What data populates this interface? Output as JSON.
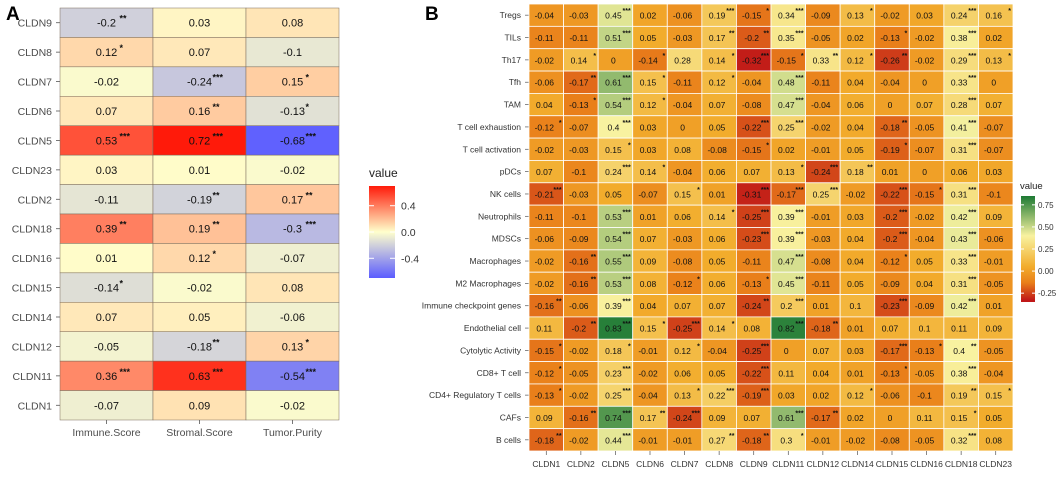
{
  "panels": {
    "a_label": "A",
    "b_label": "B"
  },
  "chart_data": [
    {
      "type": "heatmap",
      "panel": "A",
      "columns": [
        "Immune.Score",
        "Stromal.Score",
        "Tumor.Purity"
      ],
      "rows": [
        "CLDN9",
        "CLDN8",
        "CLDN7",
        "CLDN6",
        "CLDN5",
        "CLDN23",
        "CLDN2",
        "CLDN18",
        "CLDN16",
        "CLDN15",
        "CLDN14",
        "CLDN12",
        "CLDN11",
        "CLDN1"
      ],
      "values": [
        [
          -0.2,
          0.03,
          0.08
        ],
        [
          0.12,
          0.07,
          -0.1
        ],
        [
          -0.02,
          -0.24,
          0.15
        ],
        [
          0.07,
          0.16,
          -0.13
        ],
        [
          0.53,
          0.72,
          -0.68
        ],
        [
          0.03,
          0.01,
          -0.02
        ],
        [
          -0.11,
          -0.19,
          0.17
        ],
        [
          0.39,
          0.19,
          -0.3
        ],
        [
          0.01,
          0.12,
          -0.07
        ],
        [
          -0.14,
          -0.02,
          0.08
        ],
        [
          0.07,
          0.05,
          -0.06
        ],
        [
          -0.05,
          -0.18,
          0.13
        ],
        [
          0.36,
          0.63,
          -0.54
        ],
        [
          -0.07,
          0.09,
          -0.02
        ]
      ],
      "labels": [
        [
          "-0.2",
          "0.03",
          "0.08"
        ],
        [
          "0.12",
          "0.07",
          "-0.1"
        ],
        [
          "-0.02",
          "-0.24",
          "0.15"
        ],
        [
          "0.07",
          "0.16",
          "-0.13"
        ],
        [
          "0.53",
          "0.72",
          "-0.68"
        ],
        [
          "0.03",
          "0.01",
          "-0.02"
        ],
        [
          "-0.11",
          "-0.19",
          "0.17"
        ],
        [
          "0.39",
          "0.19",
          "-0.3"
        ],
        [
          "0.01",
          "0.12",
          "-0.07"
        ],
        [
          "-0.14",
          "-0.02",
          "0.08"
        ],
        [
          "0.07",
          "0.05",
          "-0.06"
        ],
        [
          "-0.05",
          "-0.18",
          "0.13"
        ],
        [
          "0.36",
          "0.63",
          "-0.54"
        ],
        [
          "-0.07",
          "0.09",
          "-0.02"
        ]
      ],
      "stars": [
        [
          "**",
          "",
          ""
        ],
        [
          "*",
          "",
          ""
        ],
        [
          "",
          "***",
          "*"
        ],
        [
          "",
          "**",
          "*"
        ],
        [
          "***",
          "***",
          "***"
        ],
        [
          "",
          "",
          ""
        ],
        [
          "",
          "**",
          "**"
        ],
        [
          "**",
          "**",
          "***"
        ],
        [
          "",
          "*",
          ""
        ],
        [
          "*",
          "",
          ""
        ],
        [
          "",
          "",
          ""
        ],
        [
          "",
          "**",
          "*"
        ],
        [
          "***",
          "***",
          "***"
        ],
        [
          "",
          "",
          ""
        ]
      ],
      "legend": {
        "title": "value",
        "ticks": [
          "0.4",
          "0.0",
          "-0.4"
        ],
        "tick_values": [
          0.4,
          0.0,
          -0.4
        ],
        "range": [
          -0.7,
          0.7
        ],
        "colors": {
          "low": "#5b5cff",
          "mid": "#ffffcc",
          "high": "#ff1a0a"
        }
      }
    },
    {
      "type": "heatmap",
      "panel": "B",
      "columns": [
        "CLDN1",
        "CLDN2",
        "CLDN5",
        "CLDN6",
        "CLDN7",
        "CLDN8",
        "CLDN9",
        "CLDN11",
        "CLDN12",
        "CLDN14",
        "CLDN15",
        "CLDN16",
        "CLDN18",
        "CLDN23"
      ],
      "rows": [
        "Tregs",
        "TILs",
        "Th17",
        "Tfh",
        "TAM",
        "T cell exhaustion",
        "T cell activation",
        "pDCs",
        "NK cells",
        "Neutrophils",
        "MDSCs",
        "Macrophages",
        "M2 Macrophages",
        "Immune checkpoint genes",
        "Endothelial cell",
        "Cytolytic Activity",
        "CD8+ T cell",
        "CD4+ Regulatory T cells",
        "CAFs",
        "B cells"
      ],
      "labels": [
        [
          "-0.04",
          "-0.03",
          "0.45",
          "0.02",
          "-0.06",
          "0.19",
          "-0.15",
          "0.34",
          "-0.09",
          "0.13",
          "-0.02",
          "0.03",
          "0.24",
          "0.16"
        ],
        [
          "-0.11",
          "-0.11",
          "0.51",
          "0.05",
          "-0.03",
          "0.17",
          "-0.2",
          "0.35",
          "-0.05",
          "0.02",
          "-0.13",
          "-0.02",
          "0.38",
          "0.02"
        ],
        [
          "-0.02",
          "0.14",
          "0",
          "-0.14",
          "0.28",
          "0.14",
          "-0.32",
          "-0.15",
          "0.33",
          "0.12",
          "-0.26",
          "-0.02",
          "0.29",
          "0.13"
        ],
        [
          "-0.06",
          "-0.17",
          "0.61",
          "0.15",
          "-0.11",
          "0.12",
          "-0.04",
          "0.48",
          "-0.11",
          "0.04",
          "-0.04",
          "0",
          "0.33",
          "0"
        ],
        [
          "0.04",
          "-0.13",
          "0.54",
          "0.12",
          "-0.04",
          "0.07",
          "-0.08",
          "0.47",
          "-0.04",
          "0.06",
          "0",
          "0.07",
          "0.28",
          "0.07"
        ],
        [
          "-0.12",
          "-0.07",
          "0.4",
          "0.03",
          "0",
          "0.05",
          "-0.22",
          "0.25",
          "-0.02",
          "0.04",
          "-0.18",
          "-0.05",
          "0.41",
          "-0.07"
        ],
        [
          "-0.02",
          "-0.03",
          "0.15",
          "0.03",
          "0.08",
          "-0.08",
          "-0.15",
          "0.02",
          "-0.01",
          "0.05",
          "-0.19",
          "-0.07",
          "0.31",
          "-0.07"
        ],
        [
          "0.07",
          "-0.1",
          "0.24",
          "0.14",
          "-0.04",
          "0.06",
          "0.07",
          "0.13",
          "-0.24",
          "0.18",
          "0.01",
          "0",
          "0.06",
          "0.03"
        ],
        [
          "-0.21",
          "-0.03",
          "0.05",
          "-0.07",
          "0.15",
          "0.01",
          "-0.31",
          "-0.17",
          "0.25",
          "-0.02",
          "-0.22",
          "-0.15",
          "0.31",
          "-0.1"
        ],
        [
          "-0.11",
          "-0.1",
          "0.53",
          "0.01",
          "0.06",
          "0.14",
          "-0.25",
          "0.39",
          "-0.01",
          "0.03",
          "-0.2",
          "-0.02",
          "0.42",
          "0.09"
        ],
        [
          "-0.06",
          "-0.09",
          "0.54",
          "0.07",
          "-0.03",
          "0.06",
          "-0.23",
          "0.39",
          "-0.03",
          "0.04",
          "-0.2",
          "-0.04",
          "0.43",
          "-0.06"
        ],
        [
          "-0.02",
          "-0.16",
          "0.55",
          "0.09",
          "-0.08",
          "0.05",
          "-0.11",
          "0.47",
          "-0.08",
          "0.04",
          "-0.12",
          "0.05",
          "0.33",
          "-0.01"
        ],
        [
          "-0.02",
          "-0.16",
          "0.53",
          "0.08",
          "-0.12",
          "0.06",
          "-0.13",
          "0.45",
          "-0.11",
          "0.05",
          "-0.09",
          "0.04",
          "0.31",
          "-0.05"
        ],
        [
          "-0.16",
          "-0.06",
          "0.39",
          "0.04",
          "0.07",
          "0.07",
          "-0.24",
          "0.2",
          "0.01",
          "0.1",
          "-0.23",
          "-0.09",
          "0.42",
          "0.01"
        ],
        [
          "0.11",
          "-0.2",
          "0.83",
          "0.15",
          "-0.25",
          "0.14",
          "0.08",
          "0.82",
          "-0.18",
          "0.01",
          "0.07",
          "0.1",
          "0.11",
          "0.09"
        ],
        [
          "-0.15",
          "-0.02",
          "0.18",
          "-0.01",
          "0.12",
          "-0.04",
          "-0.25",
          "0",
          "0.07",
          "0.03",
          "-0.17",
          "-0.13",
          "0.4",
          "-0.05"
        ],
        [
          "-0.12",
          "-0.05",
          "0.23",
          "-0.02",
          "0.06",
          "0.05",
          "-0.22",
          "0.11",
          "0.04",
          "0.01",
          "-0.13",
          "-0.05",
          "0.38",
          "-0.04"
        ],
        [
          "-0.13",
          "-0.02",
          "0.25",
          "-0.04",
          "0.13",
          "0.22",
          "-0.19",
          "0.03",
          "0.02",
          "0.12",
          "-0.06",
          "-0.1",
          "0.19",
          "0.15"
        ],
        [
          "0.09",
          "-0.16",
          "0.74",
          "0.17",
          "-0.24",
          "0.09",
          "0.07",
          "0.61",
          "-0.17",
          "0.02",
          "0",
          "0.11",
          "0.15",
          "0.05"
        ],
        [
          "-0.18",
          "-0.02",
          "0.44",
          "-0.01",
          "-0.01",
          "0.27",
          "-0.18",
          "0.3",
          "-0.01",
          "-0.02",
          "-0.08",
          "-0.05",
          "0.32",
          "0.08"
        ]
      ],
      "stars": [
        [
          "",
          "",
          "***",
          "",
          "",
          "***",
          "*",
          "***",
          "",
          "*",
          "",
          "",
          "***",
          "*"
        ],
        [
          "",
          "",
          "***",
          "",
          "",
          "**",
          "**",
          "***",
          "",
          "",
          "*",
          "",
          "***",
          ""
        ],
        [
          "",
          "*",
          "",
          "*",
          "",
          "*",
          "***",
          "*",
          "**",
          "*",
          "**",
          "",
          "***",
          "*"
        ],
        [
          "",
          "**",
          "***",
          "*",
          "",
          "*",
          "",
          "***",
          "",
          "",
          "",
          "",
          "***",
          ""
        ],
        [
          "",
          "*",
          "***",
          "*",
          "",
          "",
          "",
          "***",
          "",
          "",
          "",
          "",
          "***",
          ""
        ],
        [
          "*",
          "",
          "***",
          "",
          "",
          "",
          "***",
          "***",
          "",
          "",
          "**",
          "",
          "***",
          ""
        ],
        [
          "",
          "",
          "*",
          "",
          "",
          "",
          "*",
          "",
          "",
          "",
          "*",
          "",
          "***",
          ""
        ],
        [
          "",
          "",
          "***",
          "*",
          "",
          "",
          "",
          "*",
          "***",
          "**",
          "",
          "",
          "",
          ""
        ],
        [
          "***",
          "",
          "",
          "",
          "*",
          "",
          "***",
          "***",
          "***",
          "",
          "***",
          "*",
          "***",
          ""
        ],
        [
          "",
          "",
          "***",
          "",
          "",
          "*",
          "***",
          "***",
          "",
          "",
          "***",
          "",
          "***",
          ""
        ],
        [
          "",
          "",
          "***",
          "",
          "",
          "",
          "***",
          "***",
          "",
          "",
          "***",
          "",
          "***",
          ""
        ],
        [
          "",
          "**",
          "***",
          "",
          "",
          "",
          "",
          "***",
          "",
          "",
          "*",
          "",
          "***",
          ""
        ],
        [
          "",
          "**",
          "***",
          "",
          "*",
          "",
          "*",
          "***",
          "",
          "",
          "",
          "",
          "***",
          ""
        ],
        [
          "**",
          "",
          "***",
          "",
          "",
          "",
          "**",
          "***",
          "",
          "",
          "***",
          "",
          "***",
          ""
        ],
        [
          "",
          "**",
          "***",
          "*",
          "***",
          "*",
          "",
          "***",
          "**",
          "",
          "",
          "",
          "",
          ""
        ],
        [
          "*",
          "",
          "*",
          "",
          "*",
          "",
          "***",
          "",
          "",
          "",
          "***",
          "*",
          "**",
          ""
        ],
        [
          "*",
          "",
          "***",
          "",
          "",
          "",
          "***",
          "",
          "",
          "",
          "*",
          "",
          "***",
          ""
        ],
        [
          "*",
          "",
          "***",
          "",
          "*",
          "***",
          "***",
          "",
          "",
          "*",
          "",
          "",
          "**",
          "*"
        ],
        [
          "",
          "**",
          "***",
          "**",
          "***",
          "",
          "",
          "***",
          "**",
          "",
          "",
          "",
          "*",
          ""
        ],
        [
          "**",
          "",
          "***",
          "",
          "",
          "**",
          "**",
          "*",
          "",
          "",
          "",
          "",
          "***",
          ""
        ]
      ],
      "legend": {
        "title": "value",
        "ticks": [
          "0.75",
          "0.50",
          "0.25",
          "0.00",
          "-0.25"
        ],
        "tick_values": [
          0.75,
          0.5,
          0.25,
          0.0,
          -0.25
        ],
        "range": [
          -0.35,
          0.85
        ],
        "colors": {
          "low": "#c01818",
          "lowmid": "#e97f1a",
          "mid": "#f2ac2c",
          "highmid": "#f8f2a0",
          "high": "#1d7a34"
        }
      }
    }
  ]
}
